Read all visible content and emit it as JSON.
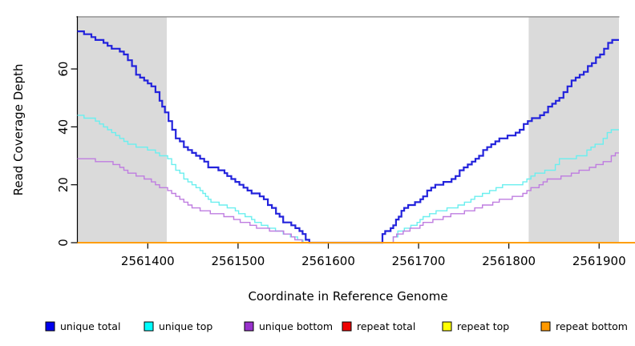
{
  "figure": {
    "background_color": "#FFFFFF",
    "shaded_region_color": "#DADADA",
    "top_border_color": "#949494",
    "axis_color": "#000000"
  },
  "chart_data": {
    "type": "line",
    "title": "",
    "xlabel": "Coordinate in Reference Genome",
    "ylabel": "Read Coverage Depth",
    "xlim": [
      2561322,
      2561922
    ],
    "ylim": [
      0,
      78
    ],
    "x_ticks": [
      2561400,
      2561500,
      2561600,
      2561700,
      2561800,
      2561900
    ],
    "x_tick_labels": [
      "2561400",
      "2561500",
      "2561600",
      "2561700",
      "2561800",
      "2561900"
    ],
    "y_ticks": [
      0,
      20,
      40,
      60
    ],
    "y_tick_labels": [
      "0",
      "20",
      "40",
      "60"
    ],
    "grid": false,
    "step_interpolation": true,
    "legend_position": "bottom",
    "shaded_regions": [
      {
        "name": "repeat-region-left",
        "x0": 2561322,
        "x1": 2561421
      },
      {
        "name": "repeat-region-right",
        "x0": 2561822,
        "x1": 2561922
      }
    ],
    "series": [
      {
        "name": "unique total",
        "color": "#2323DC",
        "width": 2.2,
        "points": [
          [
            2561322,
            73
          ],
          [
            2561333,
            72
          ],
          [
            2561342,
            70
          ],
          [
            2561351,
            69
          ],
          [
            2561360,
            67
          ],
          [
            2561369,
            66
          ],
          [
            2561378,
            63
          ],
          [
            2561387,
            58
          ],
          [
            2561396,
            56
          ],
          [
            2561404,
            54
          ],
          [
            2561413,
            49
          ],
          [
            2561419,
            45
          ],
          [
            2561423,
            42
          ],
          [
            2561431,
            36
          ],
          [
            2561440,
            33
          ],
          [
            2561449,
            31
          ],
          [
            2561458,
            29
          ],
          [
            2561467,
            26
          ],
          [
            2561482,
            25
          ],
          [
            2561488,
            23
          ],
          [
            2561497,
            21
          ],
          [
            2561506,
            19
          ],
          [
            2561515,
            17
          ],
          [
            2561524,
            16
          ],
          [
            2561533,
            13
          ],
          [
            2561542,
            10
          ],
          [
            2561550,
            7
          ],
          [
            2561559,
            6
          ],
          [
            2561568,
            4
          ],
          [
            2561575,
            1
          ],
          [
            2561579,
            0
          ],
          [
            2561655,
            0
          ],
          [
            2561660,
            3
          ],
          [
            2561666,
            4
          ],
          [
            2561672,
            6
          ],
          [
            2561678,
            9
          ],
          [
            2561684,
            12
          ],
          [
            2561693,
            13
          ],
          [
            2561699,
            14
          ],
          [
            2561705,
            16
          ],
          [
            2561714,
            19
          ],
          [
            2561723,
            20
          ],
          [
            2561732,
            21
          ],
          [
            2561741,
            23
          ],
          [
            2561750,
            26
          ],
          [
            2561759,
            28
          ],
          [
            2561767,
            30
          ],
          [
            2561776,
            33
          ],
          [
            2561785,
            35
          ],
          [
            2561794,
            36
          ],
          [
            2561803,
            37
          ],
          [
            2561812,
            39
          ],
          [
            2561821,
            42
          ],
          [
            2561830,
            43
          ],
          [
            2561839,
            45
          ],
          [
            2561848,
            48
          ],
          [
            2561856,
            50
          ],
          [
            2561865,
            54
          ],
          [
            2561874,
            57
          ],
          [
            2561883,
            59
          ],
          [
            2561892,
            62
          ],
          [
            2561901,
            65
          ],
          [
            2561910,
            69
          ],
          [
            2561919,
            70
          ],
          [
            2561922,
            70
          ]
        ]
      },
      {
        "name": "unique top",
        "color": "#6AEFEF",
        "width": 1.4,
        "points": [
          [
            2561322,
            44
          ],
          [
            2561333,
            43
          ],
          [
            2561342,
            42
          ],
          [
            2561351,
            40
          ],
          [
            2561360,
            38
          ],
          [
            2561369,
            36
          ],
          [
            2561378,
            34
          ],
          [
            2561387,
            33
          ],
          [
            2561404,
            32
          ],
          [
            2561413,
            30
          ],
          [
            2561422,
            29
          ],
          [
            2561431,
            25
          ],
          [
            2561440,
            22
          ],
          [
            2561449,
            20
          ],
          [
            2561458,
            18
          ],
          [
            2561464,
            16
          ],
          [
            2561470,
            14
          ],
          [
            2561479,
            13
          ],
          [
            2561488,
            12
          ],
          [
            2561497,
            11
          ],
          [
            2561515,
            8
          ],
          [
            2561533,
            5
          ],
          [
            2561550,
            3
          ],
          [
            2561566,
            1
          ],
          [
            2561572,
            0
          ],
          [
            2561669,
            0
          ],
          [
            2561672,
            2
          ],
          [
            2561677,
            4
          ],
          [
            2561695,
            6
          ],
          [
            2561705,
            9
          ],
          [
            2561723,
            11
          ],
          [
            2561740,
            12
          ],
          [
            2561758,
            15
          ],
          [
            2561775,
            17
          ],
          [
            2561793,
            20
          ],
          [
            2561811,
            20
          ],
          [
            2561820,
            22
          ],
          [
            2561829,
            24
          ],
          [
            2561847,
            25
          ],
          [
            2561856,
            29
          ],
          [
            2561864,
            29
          ],
          [
            2561882,
            30
          ],
          [
            2561891,
            33
          ],
          [
            2561900,
            34
          ],
          [
            2561909,
            38
          ],
          [
            2561918,
            39
          ],
          [
            2561922,
            39
          ]
        ]
      },
      {
        "name": "unique bottom",
        "color": "#BF7DE0",
        "width": 1.4,
        "points": [
          [
            2561322,
            29
          ],
          [
            2561354,
            28
          ],
          [
            2561369,
            26
          ],
          [
            2561378,
            24
          ],
          [
            2561387,
            23
          ],
          [
            2561396,
            22
          ],
          [
            2561404,
            21
          ],
          [
            2561413,
            19
          ],
          [
            2561422,
            18
          ],
          [
            2561431,
            16
          ],
          [
            2561440,
            14
          ],
          [
            2561449,
            12
          ],
          [
            2561458,
            11
          ],
          [
            2561488,
            9
          ],
          [
            2561506,
            7
          ],
          [
            2561524,
            5
          ],
          [
            2561542,
            4
          ],
          [
            2561559,
            2
          ],
          [
            2561571,
            0
          ],
          [
            2561668,
            0
          ],
          [
            2561672,
            2
          ],
          [
            2561683,
            4
          ],
          [
            2561698,
            5
          ],
          [
            2561705,
            7
          ],
          [
            2561723,
            8
          ],
          [
            2561740,
            10
          ],
          [
            2561758,
            11
          ],
          [
            2561775,
            13
          ],
          [
            2561793,
            15
          ],
          [
            2561811,
            16
          ],
          [
            2561820,
            18
          ],
          [
            2561829,
            19
          ],
          [
            2561838,
            21
          ],
          [
            2561847,
            22
          ],
          [
            2561865,
            23
          ],
          [
            2561882,
            25
          ],
          [
            2561900,
            27
          ],
          [
            2561909,
            28
          ],
          [
            2561918,
            31
          ],
          [
            2561922,
            31
          ]
        ]
      },
      {
        "name": "repeat total",
        "color": "#DD0000",
        "width": 1.4,
        "points": [
          [
            2561322,
            0
          ],
          [
            2561940,
            0
          ]
        ]
      },
      {
        "name": "repeat top",
        "color": "#FFFF00",
        "width": 1.4,
        "points": [
          [
            2561322,
            0
          ],
          [
            2561940,
            0
          ]
        ]
      },
      {
        "name": "repeat bottom",
        "color": "#FF9900",
        "width": 1.8,
        "points": [
          [
            2561322,
            0
          ],
          [
            2561940,
            0
          ]
        ]
      }
    ],
    "legend": [
      {
        "label": "unique total",
        "color": "#0000EE"
      },
      {
        "label": "unique top",
        "color": "#00FFFF"
      },
      {
        "label": "unique bottom",
        "color": "#9932CC"
      },
      {
        "label": "repeat total",
        "color": "#EE0000"
      },
      {
        "label": "repeat top",
        "color": "#FFFF00"
      },
      {
        "label": "repeat bottom",
        "color": "#FF9900"
      }
    ]
  }
}
